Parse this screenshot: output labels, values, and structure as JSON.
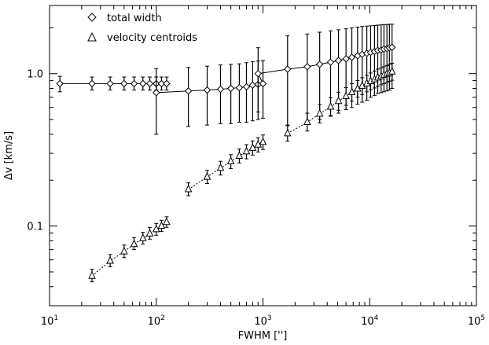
{
  "chart_data": {
    "type": "scatter",
    "xscale": "log",
    "yscale": "log",
    "xlim": [
      10,
      100000
    ],
    "ylim": [
      0.03,
      2.8
    ],
    "xlabel": "FWHM ['']",
    "ylabel": "Δv [km/s]",
    "x_ticks": [
      {
        "value": 10,
        "base": "10",
        "exp": "1"
      },
      {
        "value": 100,
        "base": "10",
        "exp": "2"
      },
      {
        "value": 1000,
        "base": "10",
        "exp": "3"
      },
      {
        "value": 10000,
        "base": "10",
        "exp": "4"
      },
      {
        "value": 100000,
        "base": "10",
        "exp": "5"
      }
    ],
    "y_ticks": [
      {
        "value": 0.1,
        "label": "0.1"
      },
      {
        "value": 1.0,
        "label": "1.0"
      }
    ],
    "legend_position": "top-left",
    "series": [
      {
        "name": "total width",
        "marker": "diamond",
        "points": [
          {
            "x": 12.5,
            "y": 0.86,
            "lo": 0.76,
            "hi": 0.96
          },
          {
            "x": 25,
            "y": 0.86,
            "lo": 0.78,
            "hi": 0.95
          },
          {
            "x": 37,
            "y": 0.86,
            "lo": 0.78,
            "hi": 0.95
          },
          {
            "x": 50,
            "y": 0.86,
            "lo": 0.78,
            "hi": 0.95
          },
          {
            "x": 62,
            "y": 0.86,
            "lo": 0.78,
            "hi": 0.95
          },
          {
            "x": 75,
            "y": 0.86,
            "lo": 0.78,
            "hi": 0.95
          },
          {
            "x": 87,
            "y": 0.86,
            "lo": 0.78,
            "hi": 0.95
          },
          {
            "x": 100,
            "y": 0.86,
            "lo": 0.78,
            "hi": 0.95
          },
          {
            "x": 112,
            "y": 0.86,
            "lo": 0.78,
            "hi": 0.95
          },
          {
            "x": 125,
            "y": 0.86,
            "lo": 0.78,
            "hi": 0.95
          },
          {
            "x": 100,
            "y": 0.75,
            "lo": 0.4,
            "hi": 1.08
          },
          {
            "x": 200,
            "y": 0.77,
            "lo": 0.45,
            "hi": 1.1
          },
          {
            "x": 300,
            "y": 0.78,
            "lo": 0.46,
            "hi": 1.12
          },
          {
            "x": 400,
            "y": 0.79,
            "lo": 0.47,
            "hi": 1.14
          },
          {
            "x": 500,
            "y": 0.8,
            "lo": 0.47,
            "hi": 1.15
          },
          {
            "x": 600,
            "y": 0.81,
            "lo": 0.48,
            "hi": 1.16
          },
          {
            "x": 700,
            "y": 0.82,
            "lo": 0.48,
            "hi": 1.18
          },
          {
            "x": 800,
            "y": 0.84,
            "lo": 0.49,
            "hi": 1.2
          },
          {
            "x": 900,
            "y": 0.85,
            "lo": 0.5,
            "hi": 1.21
          },
          {
            "x": 1000,
            "y": 0.86,
            "lo": 0.51,
            "hi": 1.22
          },
          {
            "x": 900,
            "y": 1.0,
            "lo": 0.56,
            "hi": 1.48
          },
          {
            "x": 1700,
            "y": 1.07,
            "lo": 0.46,
            "hi": 1.77
          },
          {
            "x": 2600,
            "y": 1.11,
            "lo": 0.48,
            "hi": 1.82
          },
          {
            "x": 3400,
            "y": 1.15,
            "lo": 0.5,
            "hi": 1.87
          },
          {
            "x": 4300,
            "y": 1.19,
            "lo": 0.53,
            "hi": 1.91
          },
          {
            "x": 5100,
            "y": 1.22,
            "lo": 0.55,
            "hi": 1.94
          },
          {
            "x": 6000,
            "y": 1.25,
            "lo": 0.58,
            "hi": 1.97
          },
          {
            "x": 6800,
            "y": 1.28,
            "lo": 0.6,
            "hi": 2.0
          },
          {
            "x": 7700,
            "y": 1.31,
            "lo": 0.63,
            "hi": 2.02
          },
          {
            "x": 8500,
            "y": 1.34,
            "lo": 0.65,
            "hi": 2.04
          },
          {
            "x": 9400,
            "y": 1.36,
            "lo": 0.67,
            "hi": 2.05
          },
          {
            "x": 10200,
            "y": 1.38,
            "lo": 0.7,
            "hi": 2.06
          },
          {
            "x": 11100,
            "y": 1.4,
            "lo": 0.72,
            "hi": 2.07
          },
          {
            "x": 11900,
            "y": 1.42,
            "lo": 0.74,
            "hi": 2.08
          },
          {
            "x": 12800,
            "y": 1.43,
            "lo": 0.75,
            "hi": 2.09
          },
          {
            "x": 13600,
            "y": 1.45,
            "lo": 0.76,
            "hi": 2.1
          },
          {
            "x": 14500,
            "y": 1.46,
            "lo": 0.77,
            "hi": 2.1
          },
          {
            "x": 15300,
            "y": 1.48,
            "lo": 0.78,
            "hi": 2.11
          },
          {
            "x": 16200,
            "y": 1.49,
            "lo": 0.8,
            "hi": 2.11
          }
        ],
        "line_segments": [
          [
            0,
            9
          ],
          [
            10,
            19
          ],
          [
            19,
            20
          ],
          [
            20,
            21
          ],
          [
            21,
            38
          ]
        ]
      },
      {
        "name": "velocity centroids",
        "marker": "triangle",
        "points": [
          {
            "x": 25,
            "y": 0.047,
            "lo": 0.043,
            "hi": 0.052
          },
          {
            "x": 37,
            "y": 0.059,
            "lo": 0.054,
            "hi": 0.065
          },
          {
            "x": 50,
            "y": 0.068,
            "lo": 0.062,
            "hi": 0.075
          },
          {
            "x": 62,
            "y": 0.076,
            "lo": 0.07,
            "hi": 0.084
          },
          {
            "x": 75,
            "y": 0.083,
            "lo": 0.076,
            "hi": 0.091
          },
          {
            "x": 87,
            "y": 0.089,
            "lo": 0.082,
            "hi": 0.098
          },
          {
            "x": 100,
            "y": 0.095,
            "lo": 0.087,
            "hi": 0.104
          },
          {
            "x": 112,
            "y": 0.1,
            "lo": 0.092,
            "hi": 0.109
          },
          {
            "x": 125,
            "y": 0.106,
            "lo": 0.098,
            "hi": 0.115
          },
          {
            "x": 200,
            "y": 0.174,
            "lo": 0.158,
            "hi": 0.192
          },
          {
            "x": 300,
            "y": 0.21,
            "lo": 0.19,
            "hi": 0.232
          },
          {
            "x": 400,
            "y": 0.24,
            "lo": 0.216,
            "hi": 0.266
          },
          {
            "x": 500,
            "y": 0.265,
            "lo": 0.238,
            "hi": 0.294
          },
          {
            "x": 600,
            "y": 0.288,
            "lo": 0.259,
            "hi": 0.32
          },
          {
            "x": 700,
            "y": 0.308,
            "lo": 0.276,
            "hi": 0.342
          },
          {
            "x": 800,
            "y": 0.325,
            "lo": 0.292,
            "hi": 0.362
          },
          {
            "x": 900,
            "y": 0.341,
            "lo": 0.306,
            "hi": 0.38
          },
          {
            "x": 1000,
            "y": 0.355,
            "lo": 0.318,
            "hi": 0.396
          },
          {
            "x": 1700,
            "y": 0.405,
            "lo": 0.36,
            "hi": 0.455
          },
          {
            "x": 2600,
            "y": 0.48,
            "lo": 0.42,
            "hi": 0.55
          },
          {
            "x": 3400,
            "y": 0.545,
            "lo": 0.475,
            "hi": 0.625
          },
          {
            "x": 4300,
            "y": 0.605,
            "lo": 0.525,
            "hi": 0.695
          },
          {
            "x": 5100,
            "y": 0.66,
            "lo": 0.575,
            "hi": 0.755
          },
          {
            "x": 6000,
            "y": 0.71,
            "lo": 0.62,
            "hi": 0.81
          },
          {
            "x": 6800,
            "y": 0.755,
            "lo": 0.66,
            "hi": 0.86
          },
          {
            "x": 7700,
            "y": 0.795,
            "lo": 0.7,
            "hi": 0.9
          },
          {
            "x": 8500,
            "y": 0.83,
            "lo": 0.73,
            "hi": 0.94
          },
          {
            "x": 9400,
            "y": 0.86,
            "lo": 0.76,
            "hi": 0.975
          },
          {
            "x": 10200,
            "y": 0.89,
            "lo": 0.785,
            "hi": 1.01
          },
          {
            "x": 11100,
            "y": 0.915,
            "lo": 0.805,
            "hi": 1.04
          },
          {
            "x": 11900,
            "y": 0.94,
            "lo": 0.825,
            "hi": 1.07
          },
          {
            "x": 12800,
            "y": 0.96,
            "lo": 0.845,
            "hi": 1.09
          },
          {
            "x": 13600,
            "y": 0.98,
            "lo": 0.86,
            "hi": 1.11
          },
          {
            "x": 14500,
            "y": 0.995,
            "lo": 0.875,
            "hi": 1.13
          },
          {
            "x": 15300,
            "y": 1.01,
            "lo": 0.89,
            "hi": 1.15
          },
          {
            "x": 16200,
            "y": 1.03,
            "lo": 0.905,
            "hi": 1.17
          }
        ],
        "line_segments": [
          [
            0,
            8
          ],
          [
            9,
            17
          ],
          [
            18,
            35
          ]
        ]
      }
    ]
  }
}
